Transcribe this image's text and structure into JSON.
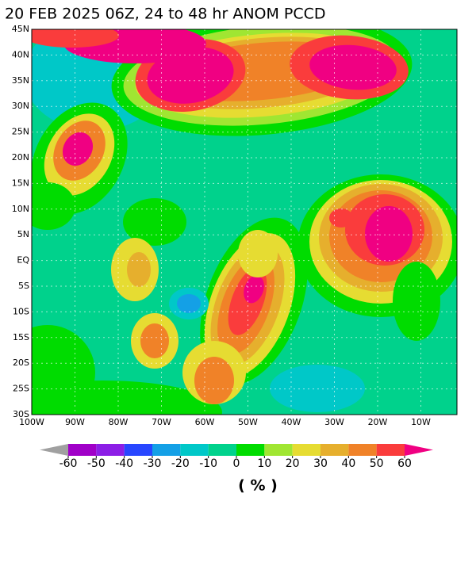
{
  "title": "20 FEB 2025 06Z,  24 to  48 hr ANOM PCCD",
  "lat_labels": [
    "45N",
    "40N",
    "35N",
    "30N",
    "25N",
    "20N",
    "15N",
    "10N",
    "5N",
    "EQ",
    "5S",
    "10S",
    "15S",
    "20S",
    "25S",
    "30S"
  ],
  "lon_labels": [
    "100W",
    "90W",
    "80W",
    "70W",
    "60W",
    "50W",
    "40W",
    "30W",
    "20W",
    "10W"
  ],
  "colorbar": {
    "ticks": [
      -60,
      -50,
      -40,
      -30,
      -20,
      -10,
      0,
      10,
      20,
      30,
      40,
      50,
      60
    ],
    "colors": [
      "#a0a0a0",
      "#a000c8",
      "#8c1ee6",
      "#2846ff",
      "#14a0e6",
      "#00c8c8",
      "#00d28c",
      "#00dc00",
      "#a0e632",
      "#e6dc32",
      "#e6af2d",
      "#f08228",
      "#fa3c3c",
      "#f00082"
    ],
    "unit": "( % )"
  }
}
